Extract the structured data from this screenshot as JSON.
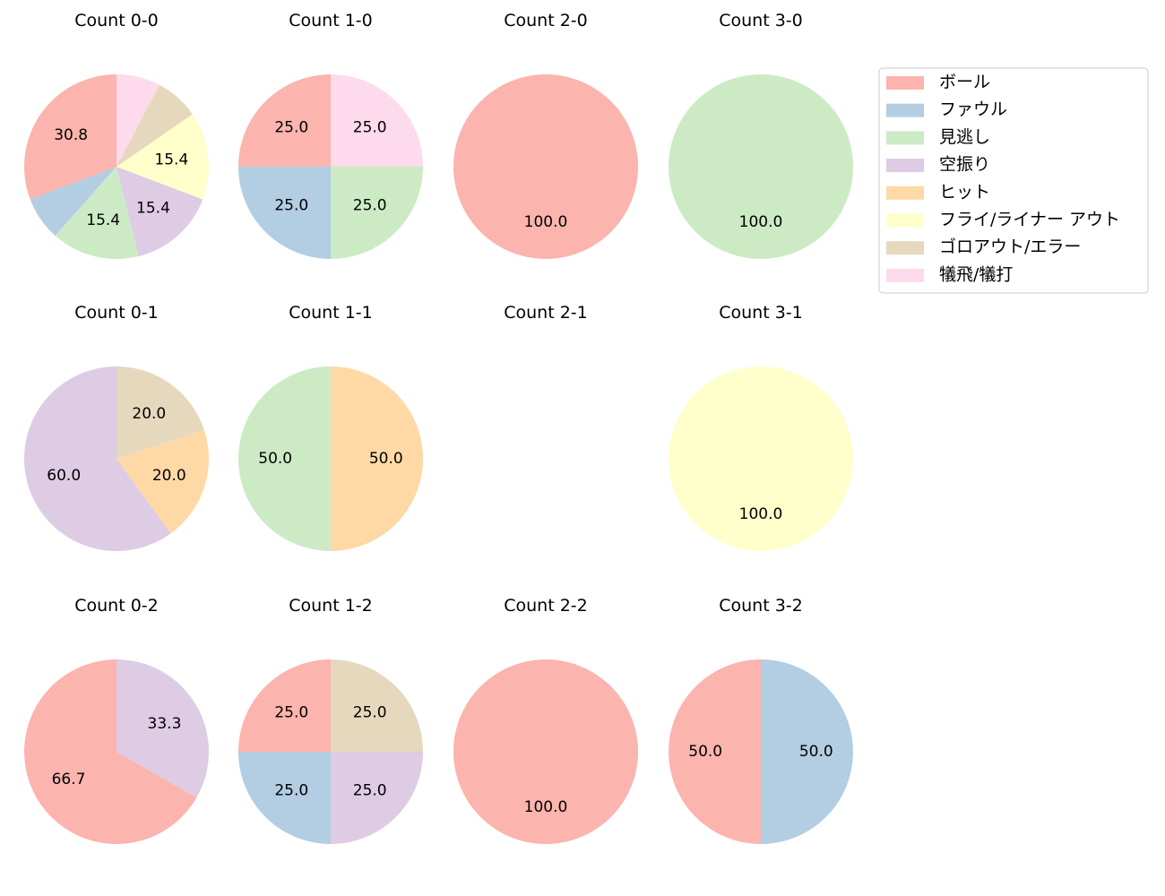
{
  "chart_data": {
    "type": "pie",
    "legend": {
      "placement": "top-right",
      "entries": [
        {
          "name": "ボール",
          "color": "#fbb4ae"
        },
        {
          "name": "ファウル",
          "color": "#b3cde3"
        },
        {
          "name": "見逃し",
          "color": "#ccebc5"
        },
        {
          "name": "空振り",
          "color": "#decbe4"
        },
        {
          "name": "ヒット",
          "color": "#fed9a6"
        },
        {
          "name": "フライ/ライナー アウト",
          "color": "#ffffcc"
        },
        {
          "name": "ゴロアウト/エラー",
          "color": "#e5d8bd"
        },
        {
          "name": "犠飛/犠打",
          "color": "#fddaec"
        }
      ]
    },
    "panels": [
      {
        "title": "Count 0-0",
        "values": [
          30.8,
          7.7,
          15.4,
          15.4,
          0,
          15.4,
          7.7,
          7.7
        ],
        "labels": [
          "30.8",
          "",
          "15.4",
          "15.4",
          "",
          "15.4",
          "",
          ""
        ]
      },
      {
        "title": "Count 1-0",
        "values": [
          25.0,
          25.0,
          25.0,
          0,
          0,
          0,
          0,
          25.0
        ],
        "labels": [
          "25.0",
          "25.0",
          "25.0",
          "",
          "",
          "",
          "",
          "25.0"
        ]
      },
      {
        "title": "Count 2-0",
        "values": [
          100.0,
          0,
          0,
          0,
          0,
          0,
          0,
          0
        ],
        "labels": [
          "100.0",
          "",
          "",
          "",
          "",
          "",
          "",
          ""
        ]
      },
      {
        "title": "Count 3-0",
        "values": [
          0,
          0,
          100.0,
          0,
          0,
          0,
          0,
          0
        ],
        "labels": [
          "",
          "",
          "100.0",
          "",
          "",
          "",
          "",
          ""
        ]
      },
      {
        "title": "Count 0-1",
        "values": [
          0,
          0,
          0,
          60.0,
          20.0,
          0,
          20.0,
          0
        ],
        "labels": [
          "",
          "",
          "",
          "60.0",
          "20.0",
          "",
          "20.0",
          ""
        ]
      },
      {
        "title": "Count 1-1",
        "values": [
          0,
          0,
          50.0,
          0,
          50.0,
          0,
          0,
          0
        ],
        "labels": [
          "",
          "",
          "50.0",
          "",
          "50.0",
          "",
          "",
          ""
        ]
      },
      {
        "title": "Count 2-1",
        "values": [
          0,
          0,
          0,
          0,
          0,
          0,
          0,
          0
        ],
        "labels": [
          "",
          "",
          "",
          "",
          "",
          "",
          "",
          ""
        ]
      },
      {
        "title": "Count 3-1",
        "values": [
          0,
          0,
          0,
          0,
          0,
          100.0,
          0,
          0
        ],
        "labels": [
          "",
          "",
          "",
          "",
          "",
          "100.0",
          "",
          ""
        ]
      },
      {
        "title": "Count 0-2",
        "values": [
          66.7,
          0,
          0,
          33.3,
          0,
          0,
          0,
          0
        ],
        "labels": [
          "66.7",
          "",
          "",
          "33.3",
          "",
          "",
          "",
          ""
        ]
      },
      {
        "title": "Count 1-2",
        "values": [
          25.0,
          25.0,
          0,
          25.0,
          0,
          0,
          25.0,
          0
        ],
        "labels": [
          "25.0",
          "25.0",
          "",
          "25.0",
          "",
          "",
          "25.0",
          ""
        ]
      },
      {
        "title": "Count 2-2",
        "values": [
          100.0,
          0,
          0,
          0,
          0,
          0,
          0,
          0
        ],
        "labels": [
          "100.0",
          "",
          "",
          "",
          "",
          "",
          "",
          ""
        ]
      },
      {
        "title": "Count 3-2",
        "values": [
          50.0,
          50.0,
          0,
          0,
          0,
          0,
          0,
          0
        ],
        "labels": [
          "50.0",
          "50.0",
          "",
          "",
          "",
          "",
          "",
          ""
        ]
      }
    ]
  }
}
